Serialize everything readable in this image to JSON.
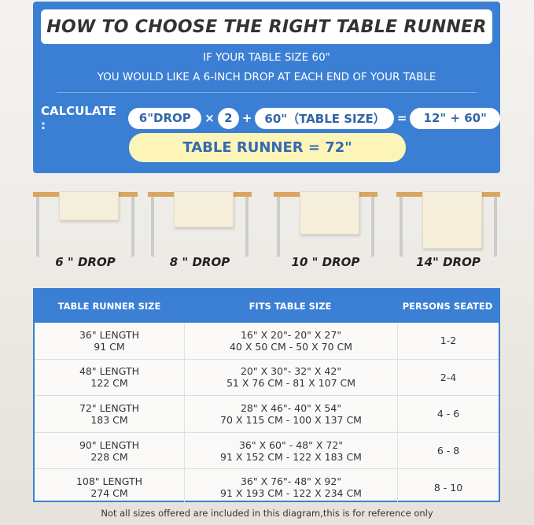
{
  "header": {
    "title": "HOW TO CHOOSE THE RIGHT TABLE RUNNER",
    "intro_line1": "IF YOUR TABLE SIZE 60\"",
    "intro_line2": "YOU WOULD LIKE A 6-INCH DROP AT EACH END OF YOUR TABLE"
  },
  "calc": {
    "label": "CALCULATE :",
    "drop": "6\"DROP",
    "times": "×",
    "multiplier": "2",
    "plus": "+",
    "table_size": "60\"（TABLE SIZE）",
    "equals": "=",
    "sum": "12\" + 60\"",
    "result": "TABLE RUNNER = 72\""
  },
  "drops": [
    {
      "label": "6 \" DROP",
      "drop_in": 6
    },
    {
      "label": "8 \" DROP",
      "drop_in": 8
    },
    {
      "label": "10 \" DROP",
      "drop_in": 10
    },
    {
      "label": "14\" DROP",
      "drop_in": 14
    }
  ],
  "table": {
    "headers": [
      "TABLE RUNNER SIZE",
      "FITS TABLE SIZE",
      "PERSONS SEATED"
    ],
    "rows": [
      {
        "size": "36\" LENGTH",
        "size_cm": "91 CM",
        "fits": "16\" X 20\"- 20\" X 27\"",
        "fits_cm": "40 X 50 CM - 50 X 70 CM",
        "persons": "1-2"
      },
      {
        "size": "48\" LENGTH",
        "size_cm": "122 CM",
        "fits": "20\" X 30\"- 32\" X 42\"",
        "fits_cm": "51 X 76 CM - 81 X 107 CM",
        "persons": "2-4"
      },
      {
        "size": "72\" LENGTH",
        "size_cm": "183 CM",
        "fits": "28\" X 46\"- 40\" X 54\"",
        "fits_cm": "70 X 115 CM - 100 X 137 CM",
        "persons": "4 - 6"
      },
      {
        "size": "90\" LENGTH",
        "size_cm": "228 CM",
        "fits": "36\" X 60\" - 48\" X 72\"",
        "fits_cm": "91 X 152 CM - 122 X 183 CM",
        "persons": "6 - 8"
      },
      {
        "size": "108\" LENGTH",
        "size_cm": "274 CM",
        "fits": "36\" X 76\"- 48\" X 92\"",
        "fits_cm": "91 X 193 CM - 122 X 234 CM",
        "persons": "8 - 10"
      }
    ]
  },
  "footnote": "Not all sizes offered are included in this diagram,this is for reference only",
  "colors": {
    "brand_blue": "#3b7fd4",
    "result_yellow": "#fdf5b8"
  }
}
